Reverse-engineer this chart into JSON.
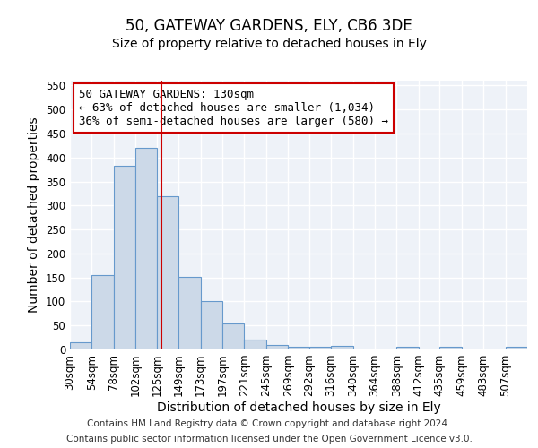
{
  "title1": "50, GATEWAY GARDENS, ELY, CB6 3DE",
  "title2": "Size of property relative to detached houses in Ely",
  "xlabel": "Distribution of detached houses by size in Ely",
  "ylabel": "Number of detached properties",
  "bin_labels": [
    "30sqm",
    "54sqm",
    "78sqm",
    "102sqm",
    "125sqm",
    "149sqm",
    "173sqm",
    "197sqm",
    "221sqm",
    "245sqm",
    "269sqm",
    "292sqm",
    "316sqm",
    "340sqm",
    "364sqm",
    "388sqm",
    "412sqm",
    "435sqm",
    "459sqm",
    "483sqm",
    "507sqm"
  ],
  "bin_edges": [
    30,
    54,
    78,
    102,
    125,
    149,
    173,
    197,
    221,
    245,
    269,
    292,
    316,
    340,
    364,
    388,
    412,
    435,
    459,
    483,
    507,
    531
  ],
  "bar_heights": [
    15,
    155,
    383,
    420,
    320,
    152,
    100,
    55,
    20,
    10,
    6,
    6,
    8,
    0,
    0,
    5,
    0,
    5,
    0,
    0,
    5
  ],
  "bar_color": "#ccd9e8",
  "bar_edge_color": "#6699cc",
  "bar_edge_width": 0.8,
  "property_size": 130,
  "red_line_color": "#cc0000",
  "annotation_line1": "50 GATEWAY GARDENS: 130sqm",
  "annotation_line2": "← 63% of detached houses are smaller (1,034)",
  "annotation_line3": "36% of semi-detached houses are larger (580) →",
  "annotation_box_color": "#ffffff",
  "annotation_box_edge_color": "#cc0000",
  "ylim": [
    0,
    560
  ],
  "yticks": [
    0,
    50,
    100,
    150,
    200,
    250,
    300,
    350,
    400,
    450,
    500,
    550
  ],
  "background_color": "#eef2f8",
  "grid_color": "#ffffff",
  "footer_line1": "Contains HM Land Registry data © Crown copyright and database right 2024.",
  "footer_line2": "Contains public sector information licensed under the Open Government Licence v3.0.",
  "title_fontsize": 12,
  "subtitle_fontsize": 10,
  "axis_label_fontsize": 10,
  "tick_fontsize": 8.5,
  "annotation_fontsize": 9,
  "footer_fontsize": 7.5
}
